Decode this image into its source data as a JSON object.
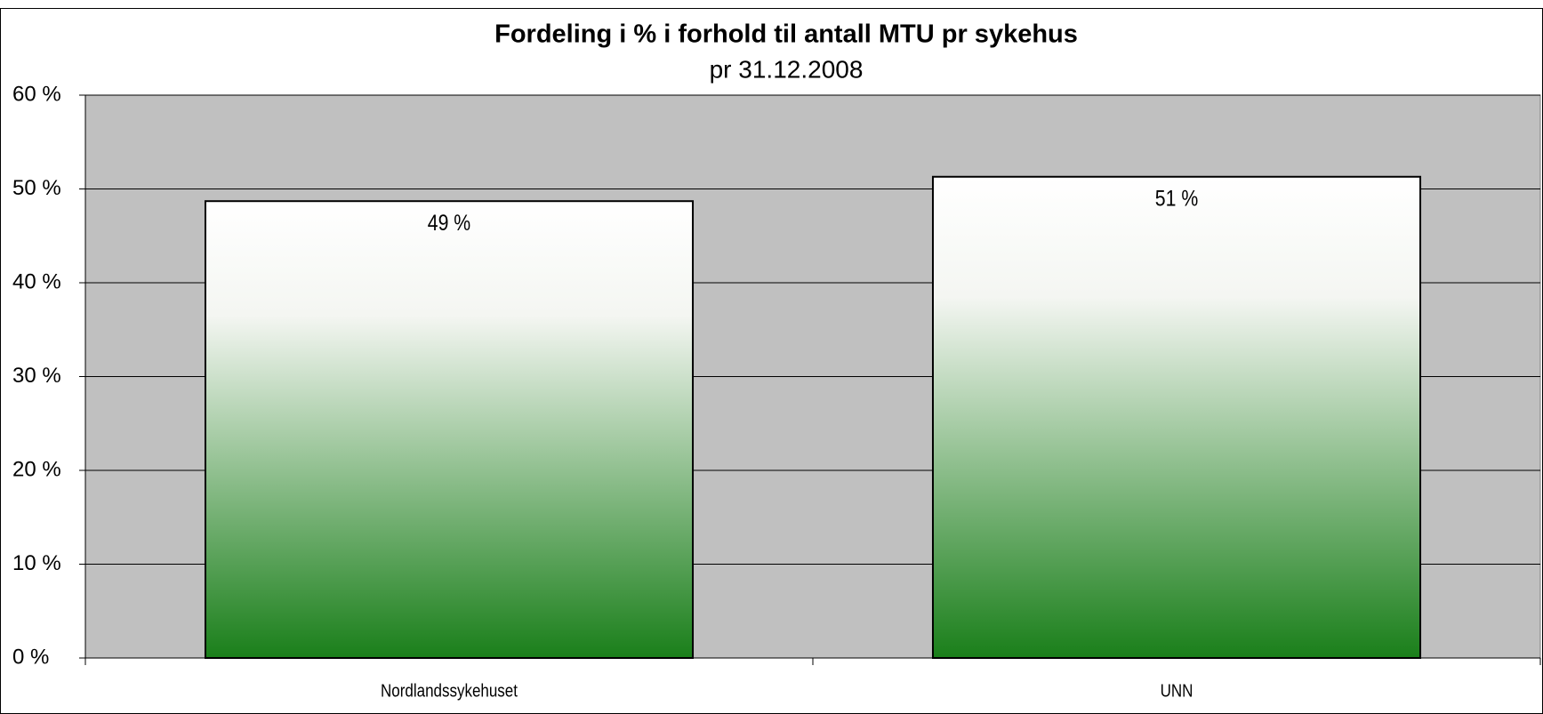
{
  "chart_data": {
    "type": "bar",
    "title": "Fordeling i % i forhold til antall MTU pr sykehus",
    "subtitle": "pr 31.12.2008",
    "categories": [
      "Nordlandssykehuset",
      "UNN"
    ],
    "values": [
      48.7,
      51.3
    ],
    "value_labels": [
      "49 %",
      "51 %"
    ],
    "color": "#1a7f1a",
    "ylim": [
      0,
      60
    ],
    "yticks": [
      {
        "value": 0,
        "label": "0 %"
      },
      {
        "value": 10,
        "label": "10 %"
      },
      {
        "value": 20,
        "label": "20 %"
      },
      {
        "value": 30,
        "label": "30 %"
      },
      {
        "value": 40,
        "label": "40 %"
      },
      {
        "value": 50,
        "label": "50 %"
      },
      {
        "value": 60,
        "label": "60 %"
      }
    ],
    "grid": true
  }
}
